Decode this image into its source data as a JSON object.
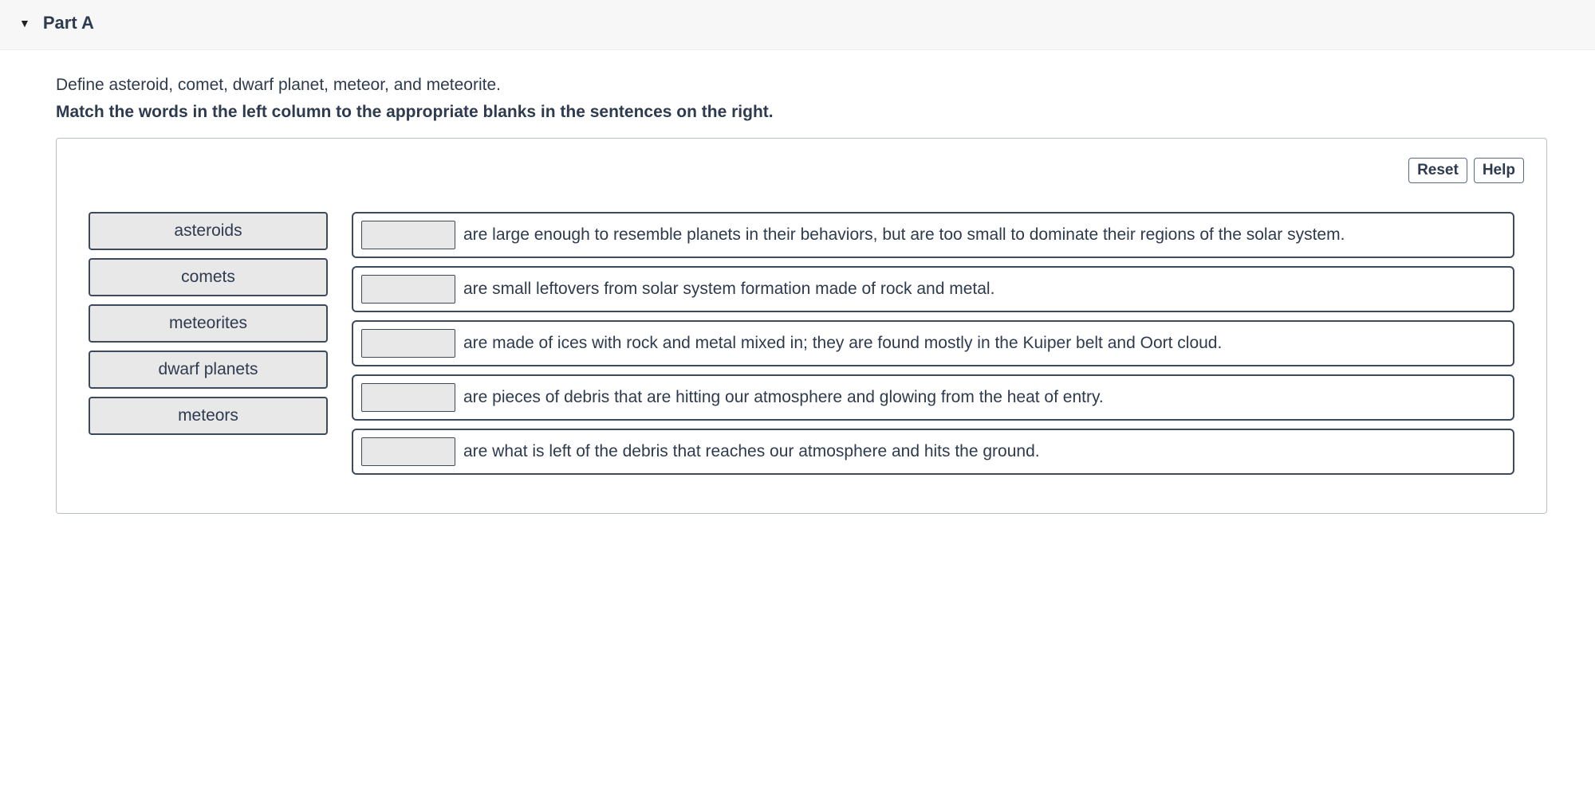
{
  "header": {
    "part_label": "Part A"
  },
  "prompt_text": "Define asteroid, comet, dwarf planet, meteor, and meteorite.",
  "instruction_text": "Match the words in the left column to the appropriate blanks in the sentences on the right.",
  "controls": {
    "reset_label": "Reset",
    "help_label": "Help"
  },
  "words": [
    "asteroids",
    "comets",
    "meteorites",
    "dwarf planets",
    "meteors"
  ],
  "sentences": [
    "are large enough to resemble planets in their behaviors, but are too small to dominate their regions of the solar system.",
    "are small leftovers from solar system formation made of rock and metal.",
    "are made of ices with rock and metal mixed in; they are found mostly in the Kuiper belt and Oort cloud.",
    "are pieces of debris that are hitting our atmosphere and glowing from the heat of entry.",
    "are what is left of the debris that reaches our atmosphere and hits the ground."
  ],
  "colors": {
    "header_bg": "#f7f7f7",
    "tile_bg": "#e8e8e8",
    "border": "#3d4a5c",
    "text": "#2e3b4e"
  }
}
